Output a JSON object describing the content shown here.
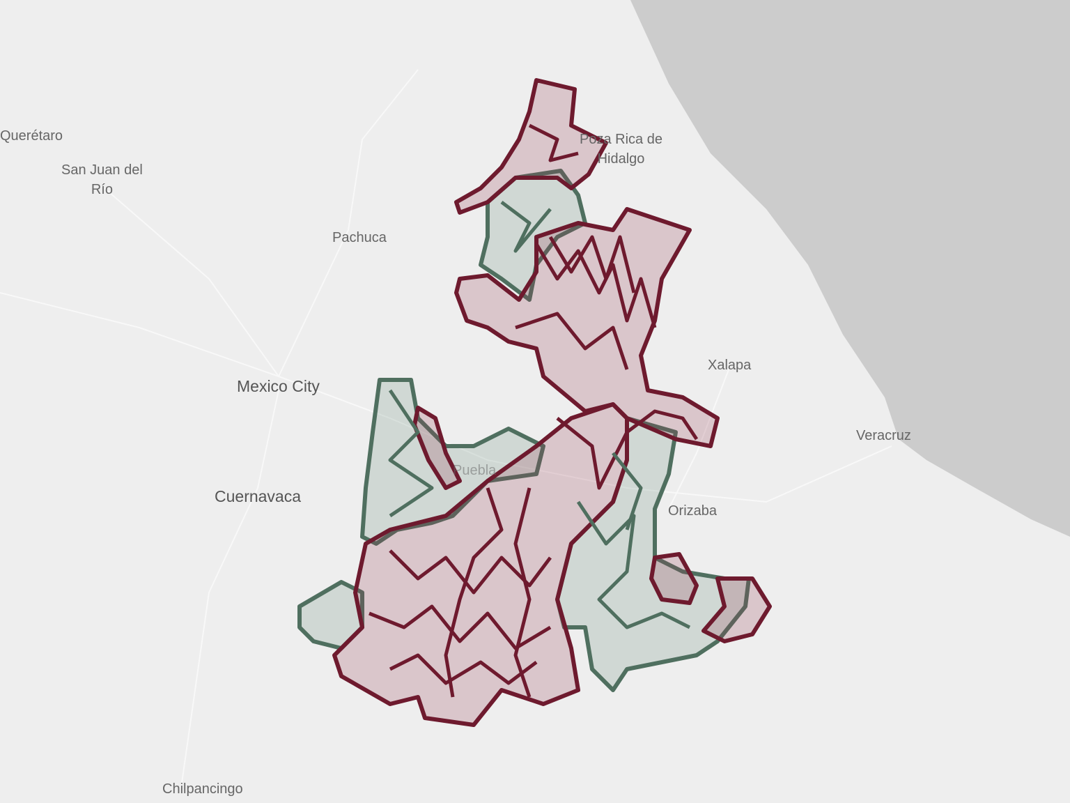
{
  "map": {
    "labels": {
      "queretaro": "Querétaro",
      "san_juan": "San Juan del\nRío",
      "pachuca": "Pachuca",
      "poza_rica": "Poza Rica de\nHidalgo",
      "mexico_city": "Mexico City",
      "xalapa": "Xalapa",
      "veracruz": "Veracruz",
      "cuernavaca": "Cuernavaca",
      "orizaba": "Orizaba",
      "puebla": "Puebla",
      "chilpancingo": "Chilpancingo"
    },
    "colors": {
      "land": "#eeeeee",
      "water": "#cccccc",
      "category_a": "#6e1a2e",
      "category_b": "#4f6f5f"
    }
  }
}
